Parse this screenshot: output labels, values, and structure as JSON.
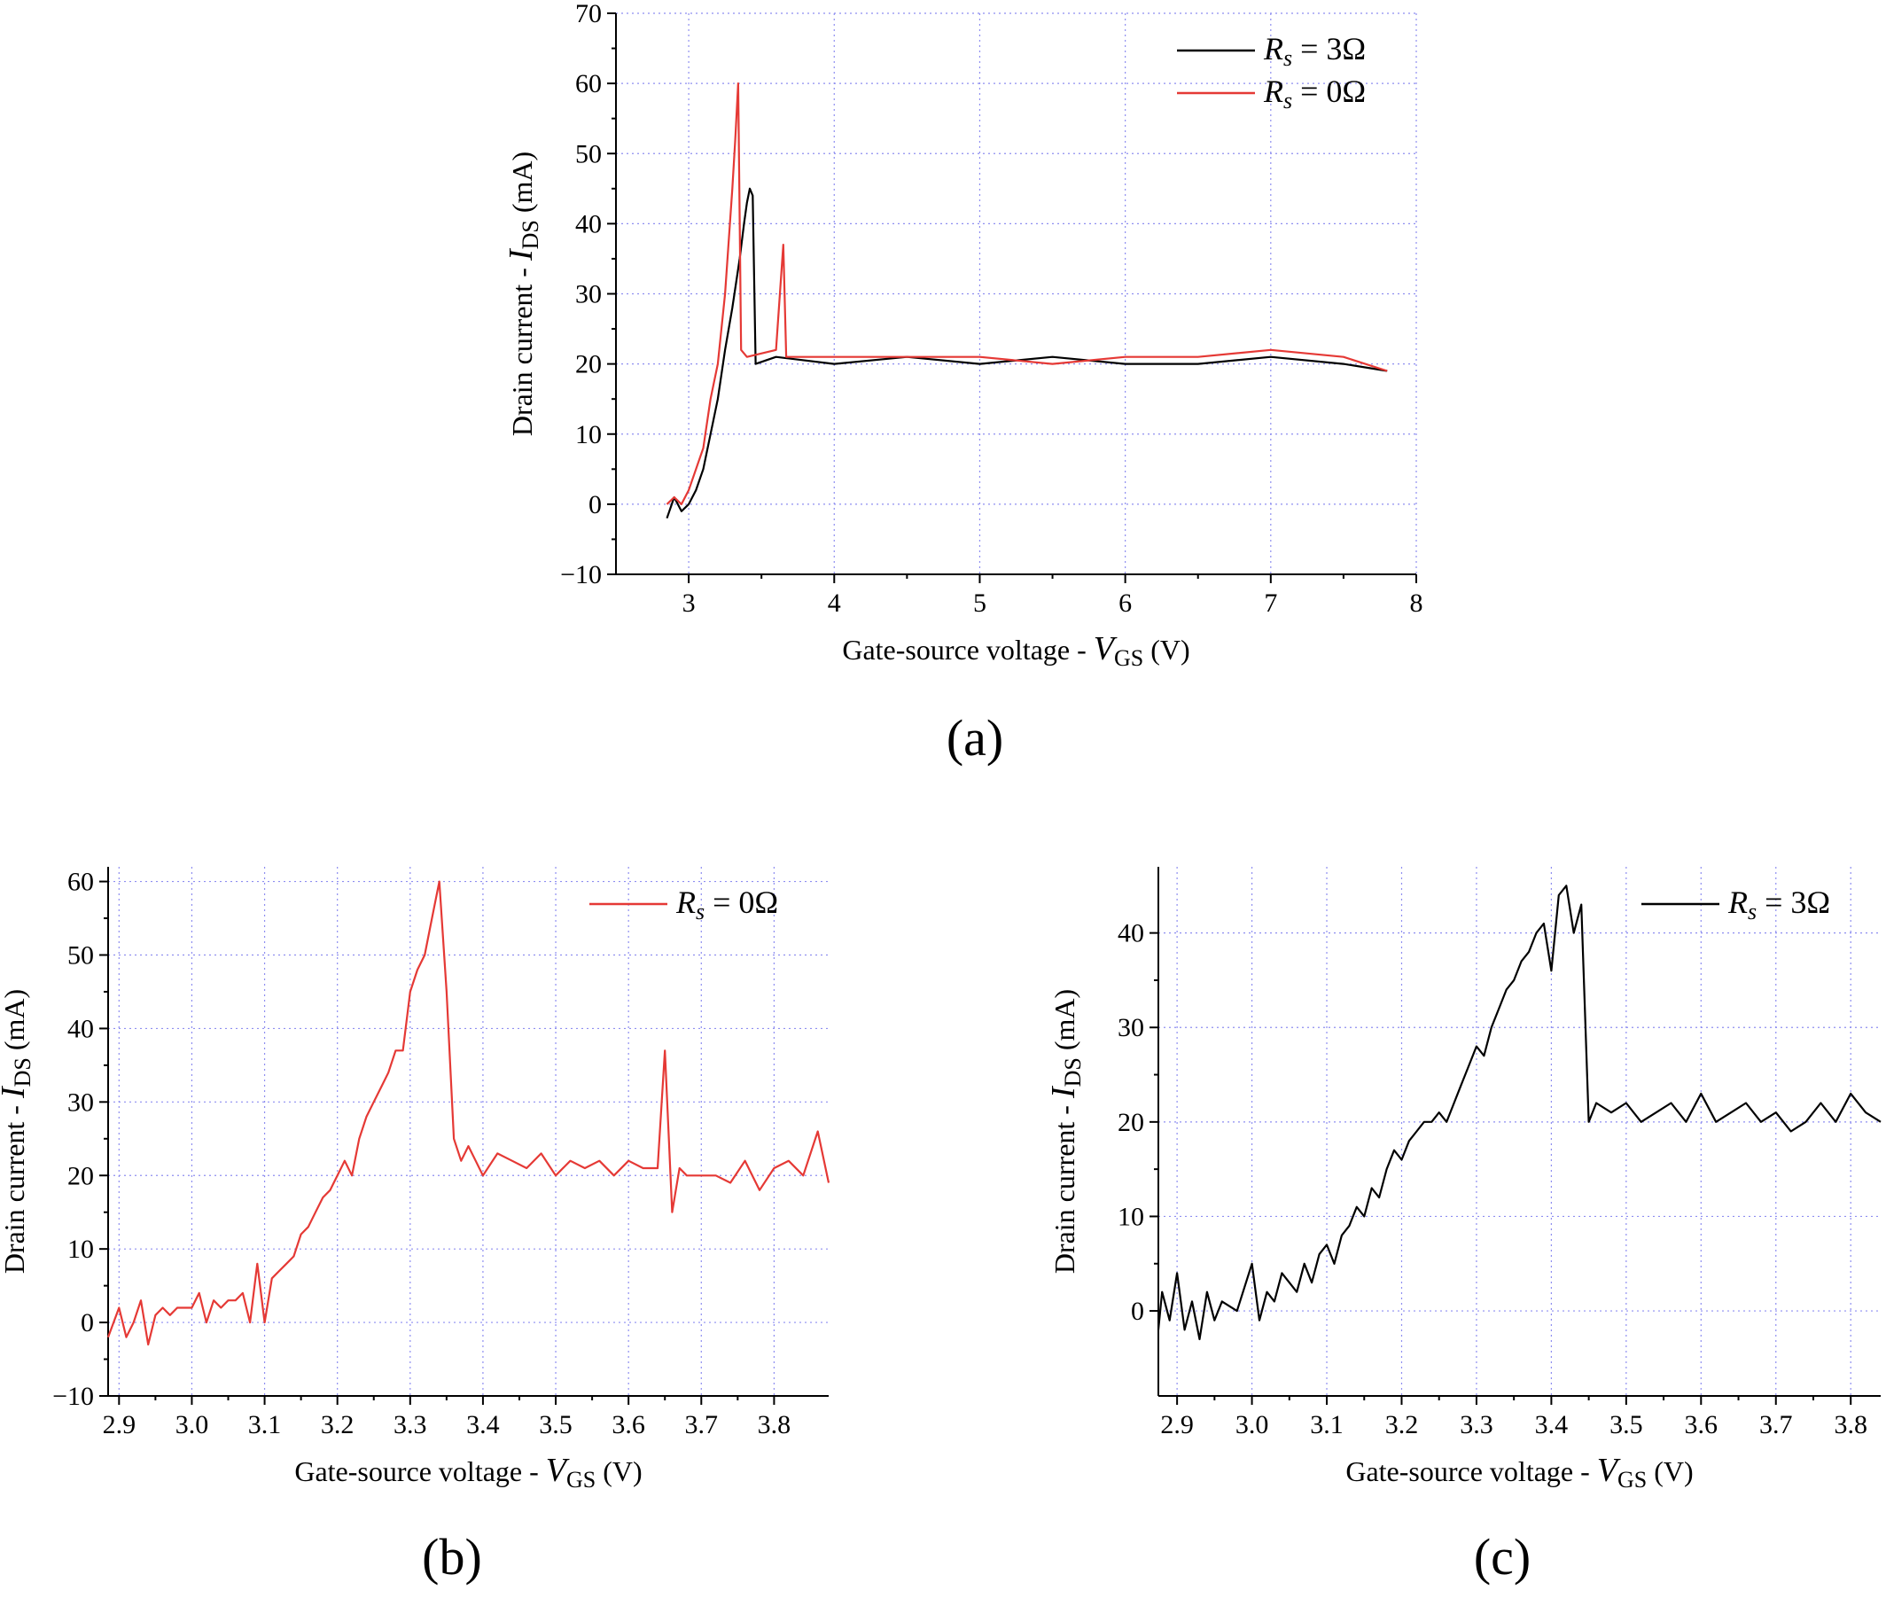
{
  "colors": {
    "red": "#e53935",
    "black": "#000000",
    "grid": "#8e8ef0"
  },
  "chart_data": [
    {
      "id": "a",
      "type": "line",
      "panel_label": "(a)",
      "xlabel": "Gate-source voltage - V_GS (V)",
      "ylabel": "Drain current - I_DS (mA)",
      "xlim": [
        2.5,
        8
      ],
      "ylim": [
        -10,
        70
      ],
      "xticks": [
        3,
        4,
        5,
        6,
        7,
        8
      ],
      "xtick_labels": [
        "3",
        "4",
        "5",
        "6",
        "7",
        "8"
      ],
      "yticks": [
        -10,
        0,
        10,
        20,
        30,
        40,
        50,
        60,
        70
      ],
      "ytick_labels": [
        "−10",
        "0",
        "10",
        "20",
        "30",
        "40",
        "50",
        "60",
        "70"
      ],
      "legend_position": "top-right",
      "series": [
        {
          "name": "R_s = 3Ω",
          "color": "#000000",
          "x": [
            2.85,
            2.9,
            2.95,
            3.0,
            3.05,
            3.1,
            3.15,
            3.2,
            3.25,
            3.3,
            3.35,
            3.38,
            3.4,
            3.42,
            3.44,
            3.46,
            3.6,
            4.0,
            4.5,
            5.0,
            5.5,
            6.0,
            6.5,
            7.0,
            7.5,
            7.8
          ],
          "y": [
            -2,
            1,
            -1,
            0,
            2,
            5,
            10,
            15,
            22,
            28,
            35,
            40,
            43,
            45,
            44,
            20,
            21,
            20,
            21,
            20,
            21,
            20,
            20,
            21,
            20,
            19
          ]
        },
        {
          "name": "R_s = 0Ω",
          "color": "#e53935",
          "x": [
            2.85,
            2.9,
            2.95,
            3.0,
            3.05,
            3.1,
            3.15,
            3.2,
            3.25,
            3.3,
            3.32,
            3.34,
            3.36,
            3.4,
            3.6,
            3.65,
            3.67,
            4.0,
            4.5,
            5.0,
            5.5,
            6.0,
            6.5,
            7.0,
            7.5,
            7.8
          ],
          "y": [
            0,
            1,
            0,
            2,
            5,
            8,
            15,
            20,
            30,
            45,
            52,
            60,
            22,
            21,
            22,
            37,
            21,
            21,
            21,
            21,
            20,
            21,
            21,
            22,
            21,
            19
          ]
        }
      ]
    },
    {
      "id": "b",
      "type": "line",
      "panel_label": "(b)",
      "xlabel": "Gate-source voltage - V_GS (V)",
      "ylabel": "Drain current - I_DS (mA)",
      "xlim": [
        2.885,
        3.875
      ],
      "ylim": [
        -10,
        62
      ],
      "xticks": [
        2.9,
        3.0,
        3.1,
        3.2,
        3.3,
        3.4,
        3.5,
        3.6,
        3.7,
        3.8
      ],
      "xtick_labels": [
        "2.9",
        "3.0",
        "3.1",
        "3.2",
        "3.3",
        "3.4",
        "3.5",
        "3.6",
        "3.7",
        "3.8"
      ],
      "yticks": [
        -10,
        0,
        10,
        20,
        30,
        40,
        50,
        60
      ],
      "ytick_labels": [
        "−10",
        "0",
        "10",
        "20",
        "30",
        "40",
        "50",
        "60"
      ],
      "legend_position": "top-right",
      "series": [
        {
          "name": "R_s = 0Ω",
          "color": "#e53935",
          "x": [
            2.885,
            2.9,
            2.91,
            2.92,
            2.93,
            2.94,
            2.95,
            2.96,
            2.97,
            2.98,
            3.0,
            3.01,
            3.02,
            3.03,
            3.04,
            3.05,
            3.06,
            3.07,
            3.08,
            3.09,
            3.1,
            3.11,
            3.12,
            3.13,
            3.14,
            3.15,
            3.16,
            3.17,
            3.18,
            3.19,
            3.2,
            3.21,
            3.22,
            3.23,
            3.24,
            3.25,
            3.26,
            3.27,
            3.28,
            3.29,
            3.3,
            3.31,
            3.32,
            3.33,
            3.34,
            3.35,
            3.36,
            3.37,
            3.38,
            3.39,
            3.4,
            3.42,
            3.44,
            3.46,
            3.48,
            3.5,
            3.52,
            3.54,
            3.56,
            3.58,
            3.6,
            3.62,
            3.64,
            3.65,
            3.66,
            3.67,
            3.68,
            3.7,
            3.72,
            3.74,
            3.76,
            3.78,
            3.8,
            3.82,
            3.84,
            3.86,
            3.875
          ],
          "y": [
            -2,
            2,
            -2,
            0,
            3,
            -3,
            1,
            2,
            1,
            2,
            2,
            4,
            0,
            3,
            2,
            3,
            3,
            4,
            0,
            8,
            0,
            6,
            7,
            8,
            9,
            12,
            13,
            15,
            17,
            18,
            20,
            22,
            20,
            25,
            28,
            30,
            32,
            34,
            37,
            37,
            45,
            48,
            50,
            55,
            60,
            45,
            25,
            22,
            24,
            22,
            20,
            23,
            22,
            21,
            23,
            20,
            22,
            21,
            22,
            20,
            22,
            21,
            21,
            37,
            15,
            21,
            20,
            20,
            20,
            19,
            22,
            18,
            21,
            22,
            20,
            26,
            19
          ]
        }
      ]
    },
    {
      "id": "c",
      "type": "line",
      "panel_label": "(c)",
      "xlabel": "Gate-source voltage - V_GS (V)",
      "ylabel": "Drain current - I_DS (mA)",
      "xlim": [
        2.875,
        3.84
      ],
      "ylim": [
        -9,
        47
      ],
      "xticks": [
        2.9,
        3.0,
        3.1,
        3.2,
        3.3,
        3.4,
        3.5,
        3.6,
        3.7,
        3.8
      ],
      "xtick_labels": [
        "2.9",
        "3.0",
        "3.1",
        "3.2",
        "3.3",
        "3.4",
        "3.5",
        "3.6",
        "3.7",
        "3.8"
      ],
      "yticks": [
        0,
        10,
        20,
        30,
        40
      ],
      "ytick_labels": [
        "0",
        "10",
        "20",
        "30",
        "40"
      ],
      "legend_position": "top-right",
      "series": [
        {
          "name": "R_s = 3Ω",
          "color": "#000000",
          "x": [
            2.875,
            2.88,
            2.89,
            2.9,
            2.91,
            2.92,
            2.93,
            2.94,
            2.95,
            2.96,
            2.98,
            3.0,
            3.01,
            3.02,
            3.03,
            3.04,
            3.05,
            3.06,
            3.07,
            3.08,
            3.09,
            3.1,
            3.11,
            3.12,
            3.13,
            3.14,
            3.15,
            3.16,
            3.17,
            3.18,
            3.19,
            3.2,
            3.21,
            3.22,
            3.23,
            3.24,
            3.25,
            3.26,
            3.27,
            3.28,
            3.29,
            3.3,
            3.31,
            3.32,
            3.33,
            3.34,
            3.35,
            3.36,
            3.37,
            3.38,
            3.39,
            3.4,
            3.41,
            3.42,
            3.43,
            3.44,
            3.45,
            3.46,
            3.48,
            3.5,
            3.52,
            3.54,
            3.56,
            3.58,
            3.6,
            3.62,
            3.64,
            3.66,
            3.68,
            3.7,
            3.72,
            3.74,
            3.76,
            3.78,
            3.8,
            3.82,
            3.84
          ],
          "y": [
            -2,
            2,
            -1,
            4,
            -2,
            1,
            -3,
            2,
            -1,
            1,
            0,
            5,
            -1,
            2,
            1,
            4,
            3,
            2,
            5,
            3,
            6,
            7,
            5,
            8,
            9,
            11,
            10,
            13,
            12,
            15,
            17,
            16,
            18,
            19,
            20,
            20,
            21,
            20,
            22,
            24,
            26,
            28,
            27,
            30,
            32,
            34,
            35,
            37,
            38,
            40,
            41,
            36,
            44,
            45,
            40,
            43,
            20,
            22,
            21,
            22,
            20,
            21,
            22,
            20,
            23,
            20,
            21,
            22,
            20,
            21,
            19,
            20,
            22,
            20,
            23,
            21,
            20
          ]
        }
      ]
    }
  ]
}
